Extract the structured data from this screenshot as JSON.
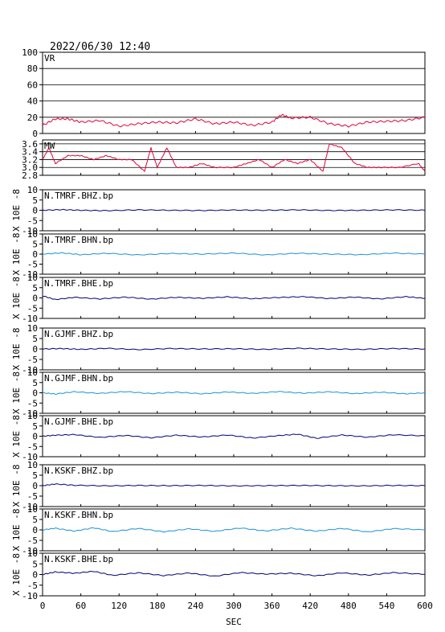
{
  "header": {
    "datetime": "2022/06/30 12:40"
  },
  "x_axis": {
    "label": "SEC",
    "range": [
      0,
      600
    ],
    "ticks": [
      "0",
      "60",
      "120",
      "180",
      "240",
      "300",
      "360",
      "420",
      "480",
      "540",
      "600"
    ]
  },
  "colors": {
    "red": "#e4003a",
    "navy": "#00007a",
    "lightblue": "#1e90d8",
    "frame": "#000000"
  },
  "chart_data": [
    {
      "type": "line",
      "title": "VR",
      "ylim": [
        0,
        100
      ],
      "grid": true,
      "color": "#e4003a",
      "yticks": [
        "0",
        "20",
        "40",
        "60",
        "80",
        "100"
      ],
      "x": [
        0,
        20,
        40,
        60,
        90,
        120,
        150,
        180,
        210,
        240,
        270,
        300,
        330,
        360,
        375,
        390,
        420,
        450,
        480,
        510,
        540,
        570,
        600
      ],
      "values": [
        10,
        18,
        18,
        14,
        16,
        9,
        12,
        14,
        13,
        18,
        12,
        14,
        10,
        14,
        23,
        19,
        20,
        12,
        9,
        14,
        15,
        16,
        20
      ]
    },
    {
      "type": "line",
      "title": "MW",
      "ylim": [
        2.8,
        3.7
      ],
      "grid": true,
      "color": "#e4003a",
      "yticks": [
        "2.8",
        "3.0",
        "3.2",
        "3.4",
        "3.6"
      ],
      "x": [
        0,
        10,
        20,
        40,
        60,
        80,
        100,
        120,
        140,
        160,
        170,
        180,
        195,
        210,
        230,
        250,
        270,
        300,
        320,
        340,
        360,
        380,
        400,
        420,
        440,
        450,
        470,
        490,
        510,
        530,
        560,
        590,
        600
      ],
      "values": [
        3.2,
        3.5,
        3.1,
        3.3,
        3.3,
        3.2,
        3.3,
        3.2,
        3.2,
        2.9,
        3.5,
        3.0,
        3.5,
        3.0,
        3.0,
        3.1,
        3.0,
        3.0,
        3.1,
        3.2,
        3.0,
        3.2,
        3.1,
        3.2,
        2.9,
        3.6,
        3.5,
        3.1,
        3.0,
        3.0,
        3.0,
        3.1,
        2.9
      ]
    },
    {
      "type": "line",
      "title": "N.TMRF.BHZ.bp",
      "ylabel": "X 10E -8",
      "ylim": [
        -10,
        10
      ],
      "grid": false,
      "color": "#00007a",
      "yticks": [
        "-10",
        "-5",
        "0",
        "5",
        "10"
      ],
      "x": [
        0,
        30,
        60,
        100,
        150,
        200,
        250,
        300,
        350,
        400,
        450,
        500,
        550,
        600
      ],
      "values": [
        0,
        0.3,
        0,
        -0.2,
        0.2,
        0,
        -0.1,
        0.1,
        0,
        0.2,
        -0.1,
        0,
        0.2,
        0
      ]
    },
    {
      "type": "line",
      "title": "N.TMRF.BHN.bp",
      "ylabel": "X 10E -8",
      "ylim": [
        -10,
        10
      ],
      "grid": false,
      "color": "#1e90d8",
      "yticks": [
        "-10",
        "-5",
        "0",
        "5",
        "10"
      ],
      "x": [
        0,
        30,
        60,
        100,
        150,
        200,
        250,
        300,
        350,
        400,
        450,
        500,
        550,
        600
      ],
      "values": [
        0,
        0.6,
        -0.3,
        0.4,
        -0.4,
        0.3,
        0,
        0.5,
        -0.4,
        0.4,
        0,
        -0.3,
        0.5,
        0
      ]
    },
    {
      "type": "line",
      "title": "N.TMRF.BHE.bp",
      "ylabel": "X 10E -8",
      "ylim": [
        -10,
        10
      ],
      "grid": false,
      "color": "#00007a",
      "yticks": [
        "-10",
        "-5",
        "0",
        "5",
        "10"
      ],
      "x": [
        0,
        20,
        50,
        90,
        130,
        170,
        210,
        250,
        290,
        330,
        370,
        410,
        450,
        490,
        530,
        570,
        600
      ],
      "values": [
        1.0,
        -0.8,
        0.3,
        -0.5,
        0.4,
        -0.6,
        0.3,
        -0.2,
        0.5,
        -0.4,
        0.2,
        0.6,
        -0.3,
        0.4,
        -0.5,
        0.6,
        -0.2
      ]
    },
    {
      "type": "line",
      "title": "N.GJMF.BHZ.bp",
      "ylabel": "X 10E -8",
      "ylim": [
        -10,
        10
      ],
      "grid": false,
      "color": "#00007a",
      "yticks": [
        "-10",
        "-5",
        "0",
        "5",
        "10"
      ],
      "x": [
        0,
        30,
        60,
        100,
        150,
        200,
        250,
        300,
        350,
        400,
        450,
        500,
        550,
        600
      ],
      "values": [
        0,
        0.2,
        -0.2,
        0.3,
        -0.3,
        0.2,
        0,
        0.1,
        -0.2,
        0.3,
        0,
        -0.2,
        0.2,
        0
      ]
    },
    {
      "type": "line",
      "title": "N.GJMF.BHN.bp",
      "ylabel": "X 10E -8",
      "ylim": [
        -10,
        10
      ],
      "grid": false,
      "color": "#1e90d8",
      "yticks": [
        "-10",
        "-5",
        "0",
        "5",
        "10"
      ],
      "x": [
        0,
        20,
        50,
        90,
        130,
        170,
        210,
        250,
        290,
        330,
        370,
        410,
        450,
        490,
        530,
        570,
        600
      ],
      "values": [
        0,
        -0.6,
        0.5,
        -0.3,
        0.6,
        -0.4,
        0.3,
        -0.5,
        0.4,
        -0.3,
        0.6,
        -0.2,
        0.5,
        -0.4,
        0.3,
        -0.5,
        0
      ]
    },
    {
      "type": "line",
      "title": "N.GJMF.BHE.bp",
      "ylabel": "X 10E -8",
      "ylim": [
        -10,
        10
      ],
      "grid": false,
      "color": "#00007a",
      "yticks": [
        "-10",
        "-5",
        "0",
        "5",
        "10"
      ],
      "x": [
        0,
        20,
        50,
        90,
        130,
        170,
        210,
        250,
        290,
        330,
        370,
        400,
        430,
        470,
        510,
        550,
        600
      ],
      "values": [
        0,
        0.5,
        0.8,
        -0.6,
        0.4,
        -0.8,
        0.5,
        -0.4,
        0.6,
        -0.9,
        0.3,
        1.0,
        -1.0,
        0.6,
        -0.5,
        0.7,
        0.2
      ]
    },
    {
      "type": "line",
      "title": "N.KSKF.BHZ.bp",
      "ylabel": "X 10E -8",
      "ylim": [
        -10,
        10
      ],
      "grid": false,
      "color": "#00007a",
      "yticks": [
        "-10",
        "-5",
        "0",
        "5",
        "10"
      ],
      "x": [
        0,
        20,
        50,
        100,
        150,
        200,
        250,
        300,
        350,
        400,
        450,
        500,
        550,
        600
      ],
      "values": [
        0,
        0.8,
        0.2,
        -0.1,
        0.1,
        0,
        0.1,
        -0.1,
        0,
        0.1,
        0,
        -0.1,
        0.1,
        0
      ]
    },
    {
      "type": "line",
      "title": "N.KSKF.BHN.bp",
      "ylabel": "X 10E -8",
      "ylim": [
        -10,
        10
      ],
      "grid": false,
      "color": "#1e90d8",
      "yticks": [
        "-10",
        "-5",
        "0",
        "5",
        "10"
      ],
      "x": [
        0,
        20,
        50,
        80,
        110,
        150,
        190,
        230,
        270,
        310,
        350,
        390,
        430,
        470,
        510,
        550,
        600
      ],
      "values": [
        0,
        0.8,
        -0.6,
        1.0,
        -0.8,
        0.7,
        -0.9,
        0.5,
        -0.7,
        0.9,
        -0.5,
        0.8,
        -0.6,
        0.7,
        -1.0,
        0.6,
        0
      ]
    },
    {
      "type": "line",
      "title": "N.KSKF.BHE.bp",
      "ylabel": "X 10E -8",
      "ylim": [
        -10,
        10
      ],
      "grid": false,
      "color": "#00007a",
      "yticks": [
        "-10",
        "-5",
        "0",
        "5",
        "10"
      ],
      "x": [
        0,
        20,
        50,
        80,
        110,
        150,
        190,
        230,
        270,
        310,
        350,
        390,
        430,
        470,
        510,
        550,
        600
      ],
      "values": [
        0,
        1.2,
        0.6,
        1.5,
        -0.4,
        0.8,
        -0.5,
        0.7,
        -0.8,
        0.9,
        0.2,
        0.6,
        -0.6,
        0.8,
        -0.3,
        0.9,
        0.1
      ]
    }
  ]
}
